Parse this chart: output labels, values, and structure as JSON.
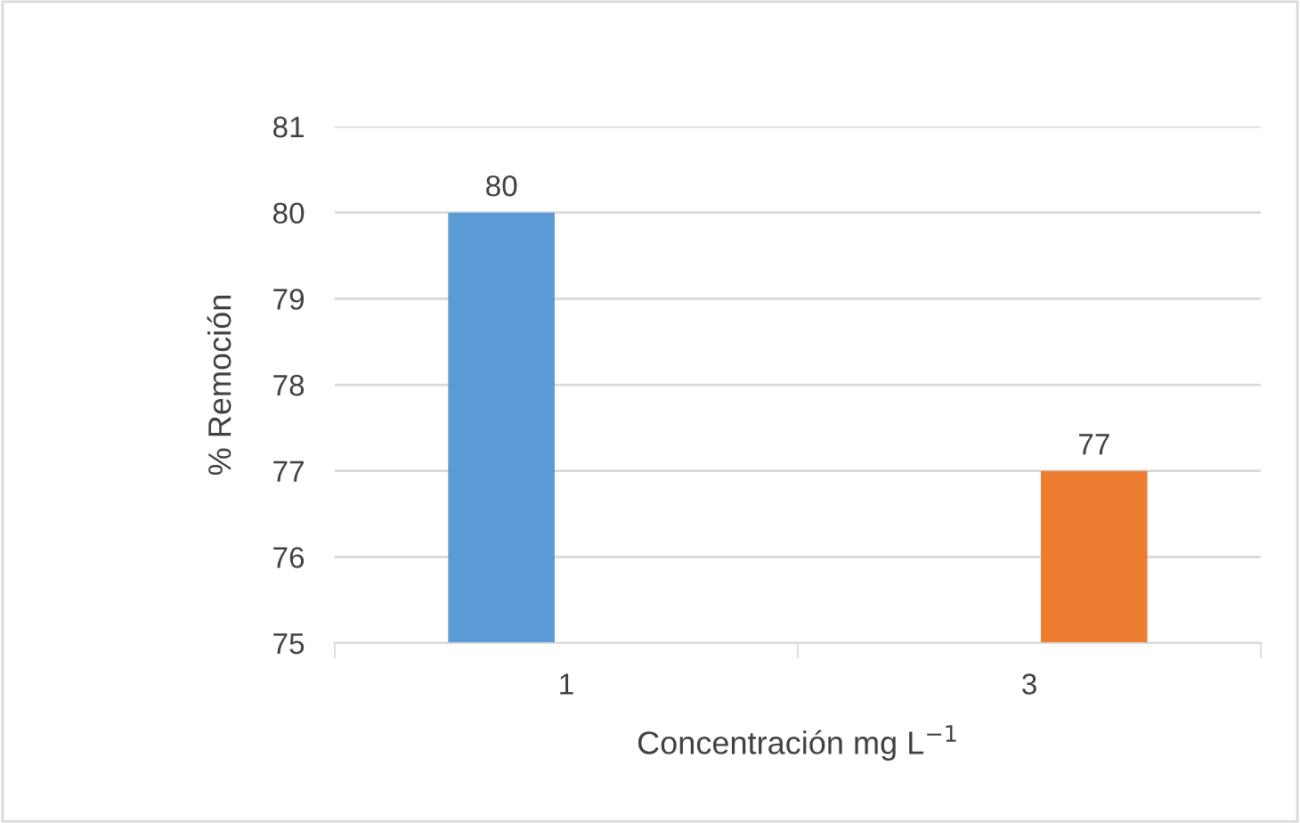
{
  "chart_data": {
    "type": "bar",
    "categories": [
      "1",
      "3"
    ],
    "series": [
      {
        "color": "#5b9bd5",
        "values": [
          80,
          null
        ]
      },
      {
        "color": "#ed7d31",
        "values": [
          null,
          77
        ]
      }
    ],
    "xlabel": "Concentración mg L$^{−1}$",
    "ylabel": "% Remoción",
    "ylim": [
      75,
      81
    ],
    "yticks": [
      75,
      76,
      77,
      78,
      79,
      80,
      81
    ],
    "grid": "y",
    "data_labels": true,
    "legend": false
  }
}
